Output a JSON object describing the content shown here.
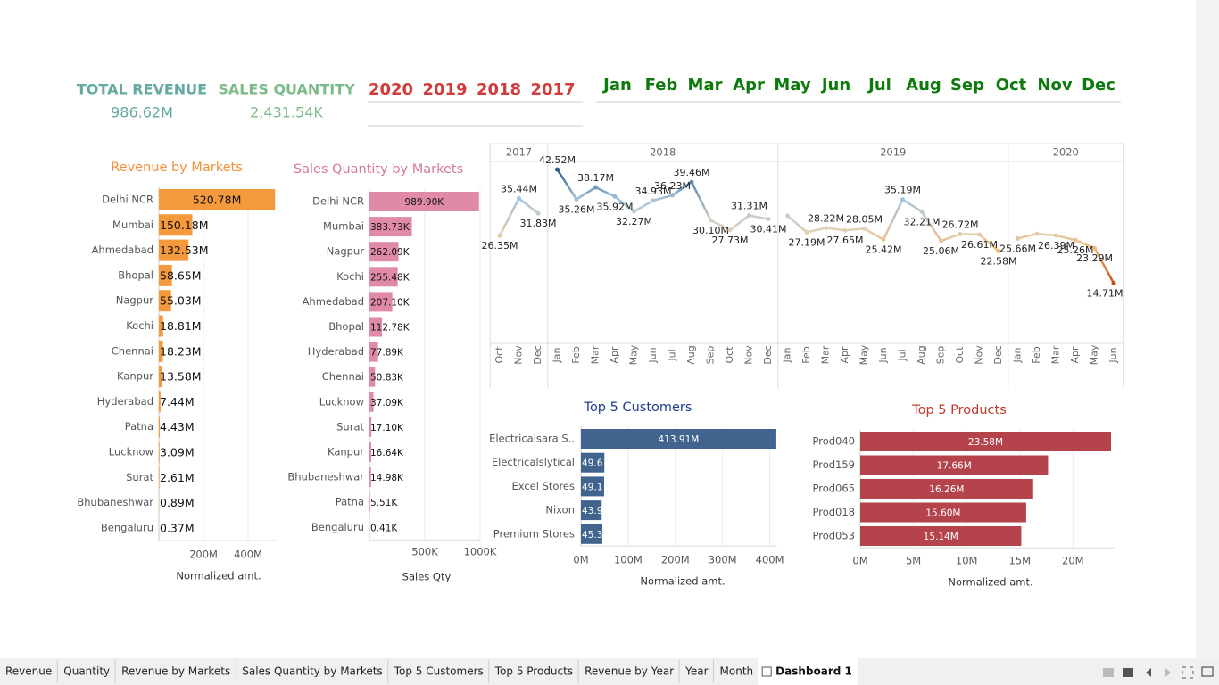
{
  "kpis": [
    {
      "label": "TOTAL REVENUE",
      "value": "986.62M"
    },
    {
      "label": "SALES QUANTITY",
      "value": "2,431.54K"
    }
  ],
  "year_filter": [
    "2020",
    "2019",
    "2018",
    "2017"
  ],
  "month_filter": [
    "Jan",
    "Feb",
    "Mar",
    "Apr",
    "May",
    "Jun",
    "Jul",
    "Aug",
    "Sep",
    "Oct",
    "Nov",
    "Dec"
  ],
  "chart_data": [
    {
      "type": "hbar",
      "title": "Revenue by Markets",
      "color": "#f59a3c",
      "categories": [
        "Delhi NCR",
        "Mumbai",
        "Ahmedabad",
        "Bhopal",
        "Nagpur",
        "Kochi",
        "Chennai",
        "Kanpur",
        "Hyderabad",
        "Patna",
        "Lucknow",
        "Surat",
        "Bhubaneshwar",
        "Bengaluru"
      ],
      "values": [
        520.78,
        150.18,
        132.53,
        58.65,
        55.03,
        18.81,
        18.23,
        13.58,
        7.44,
        4.43,
        3.09,
        2.61,
        0.89,
        0.37
      ],
      "value_labels": [
        "520.78M",
        "150.18M",
        "132.53M",
        "58.65M",
        "55.03M",
        "18.81M",
        "18.23M",
        "13.58M",
        "7.44M",
        "4.43M",
        "3.09M",
        "2.61M",
        "0.89M",
        "0.37M"
      ],
      "xlim": [
        0,
        528
      ],
      "xticks": [
        {
          "value": 200,
          "label": "200M"
        },
        {
          "value": 400,
          "label": "400M"
        }
      ],
      "x_label": "Normalized amt."
    },
    {
      "type": "hbar",
      "title": "Sales Quantity by Markets",
      "color": "#e08aa8",
      "categories": [
        "Delhi NCR",
        "Mumbai",
        "Nagpur",
        "Kochi",
        "Ahmedabad",
        "Bhopal",
        "Hyderabad",
        "Chennai",
        "Lucknow",
        "Surat",
        "Kanpur",
        "Bhubaneshwar",
        "Patna",
        "Bengaluru"
      ],
      "values": [
        989.9,
        383.73,
        262.09,
        255.48,
        207.1,
        112.78,
        77.89,
        50.83,
        37.09,
        17.1,
        16.64,
        14.98,
        5.51,
        0.41
      ],
      "value_labels": [
        "989.90K",
        "383.73K",
        "262.09K",
        "255.48K",
        "207.10K",
        "112.78K",
        "77.89K",
        "50.83K",
        "37.09K",
        "17.10K",
        "16.64K",
        "14.98K",
        "5.51K",
        "0.41K"
      ],
      "xlim": [
        0,
        1000
      ],
      "xticks": [
        {
          "value": 500,
          "label": "500K"
        },
        {
          "value": 1000,
          "label": "1000K"
        }
      ],
      "x_label": "Sales Qty"
    },
    {
      "type": "line",
      "ylim": [
        0,
        44.5
      ],
      "colors": [
        "#c44e14",
        "#f3b463",
        "#ddd3c2",
        "#9fc1dc",
        "#2d5b8c"
      ],
      "panels": [
        {
          "year": "2017",
          "categories": [
            "Oct",
            "Nov",
            "Dec"
          ],
          "values": [
            26.35,
            35.44,
            31.83
          ],
          "value_labels": [
            "26.35M",
            "35.44M",
            "31.83M"
          ]
        },
        {
          "year": "2018",
          "categories": [
            "Jan",
            "Feb",
            "Mar",
            "Apr",
            "May",
            "Jun",
            "Jul",
            "Aug",
            "Sep",
            "Oct",
            "Nov",
            "Dec"
          ],
          "values": [
            42.52,
            35.26,
            38.17,
            35.92,
            32.27,
            34.93,
            36.23,
            39.46,
            30.1,
            27.73,
            31.31,
            30.41
          ],
          "value_labels": [
            "42.52M",
            "35.26M",
            "38.17M",
            "35.92M",
            "32.27M",
            "34.93M",
            "36.23M",
            "39.46M",
            "30.10M",
            "27.73M",
            "31.31M",
            "30.41M"
          ]
        },
        {
          "year": "2019",
          "categories": [
            "Jan",
            "Feb",
            "Mar",
            "Apr",
            "May",
            "Jun",
            "Jul",
            "Aug",
            "Sep",
            "Oct",
            "Nov",
            "Dec"
          ],
          "values": [
            31.2,
            27.19,
            28.22,
            27.65,
            28.05,
            25.42,
            35.19,
            32.21,
            25.06,
            26.72,
            26.61,
            22.58
          ],
          "value_labels": [
            null,
            "27.19M",
            "28.22M",
            "27.65M",
            "28.05M",
            "25.42M",
            "35.19M",
            "32.21M",
            "25.06M",
            "26.72M",
            "26.61M",
            "22.58M"
          ]
        },
        {
          "year": "2020",
          "categories": [
            "Jan",
            "Feb",
            "Mar",
            "Apr",
            "May",
            "Jun"
          ],
          "values": [
            25.66,
            26.8,
            26.39,
            25.26,
            23.29,
            14.71
          ],
          "value_labels": [
            "25.66M",
            null,
            "26.39M",
            "25.26M",
            "23.29M",
            "14.71M"
          ]
        }
      ]
    },
    {
      "type": "hbar",
      "title": "Top 5 Customers",
      "color": "#41648e",
      "categories": [
        "Electricalsara S..",
        "Electricalslytical",
        "Excel Stores",
        "Nixon",
        "Premium Stores"
      ],
      "values": [
        413.91,
        49.6,
        49.1,
        43.9,
        45.3
      ],
      "value_labels": [
        "413.91M",
        "49.6",
        "49.1",
        "43.9",
        "45.3"
      ],
      "xlim": [
        0,
        415
      ],
      "xticks": [
        {
          "value": 0,
          "label": "0M"
        },
        {
          "value": 100,
          "label": "100M"
        },
        {
          "value": 200,
          "label": "200M"
        },
        {
          "value": 300,
          "label": "300M"
        },
        {
          "value": 400,
          "label": "400M"
        }
      ],
      "x_label": "Normalized amt."
    },
    {
      "type": "hbar",
      "title": "Top 5 Products",
      "color": "#b5434b",
      "categories": [
        "Prod040",
        "Prod159",
        "Prod065",
        "Prod018",
        "Prod053"
      ],
      "values": [
        23.58,
        17.66,
        16.26,
        15.6,
        15.14
      ],
      "value_labels": [
        "23.58M",
        "17.66M",
        "16.26M",
        "15.60M",
        "15.14M"
      ],
      "xlim": [
        0,
        24
      ],
      "xticks": [
        {
          "value": 0,
          "label": "0M"
        },
        {
          "value": 5,
          "label": "5M"
        },
        {
          "value": 10,
          "label": "10M"
        },
        {
          "value": 15,
          "label": "15M"
        },
        {
          "value": 20,
          "label": "20M"
        }
      ],
      "x_label": "Normalized amt."
    }
  ],
  "tabs": [
    "Revenue",
    "Quantity",
    "Revenue by Markets",
    "Sales Quantity by Markets",
    "Top 5 Customers",
    "Top 5 Products",
    "Revenue by Year",
    "Year",
    "Month",
    "Dashboard 1"
  ]
}
